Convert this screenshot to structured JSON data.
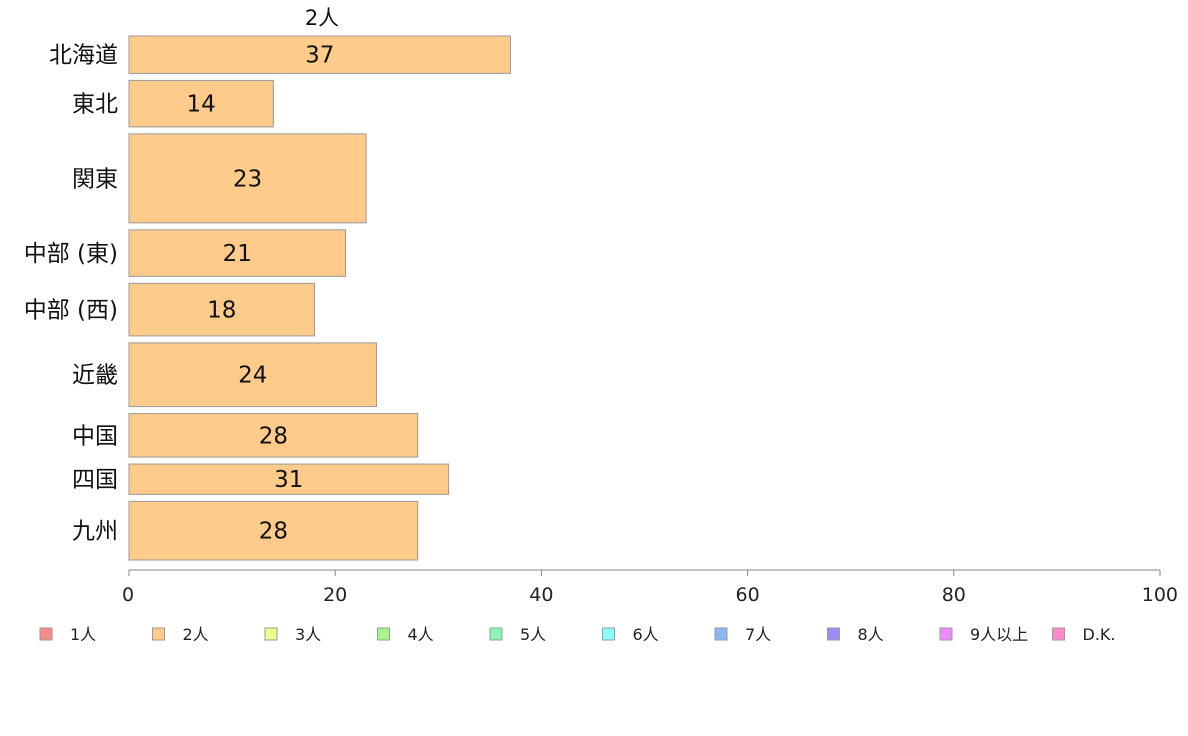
{
  "chart_data": {
    "type": "bar",
    "orientation": "horizontal",
    "series_title": "2人",
    "categories": [
      "北海道",
      "東北",
      "関東",
      "中部 (東)",
      "中部 (西)",
      "近畿",
      "中国",
      "四国",
      "九州"
    ],
    "values": [
      37,
      14,
      23,
      21,
      18,
      24,
      28,
      31,
      28
    ],
    "bar_weights": [
      37,
      46,
      88,
      46,
      52,
      63,
      43,
      30,
      58
    ],
    "xlim": [
      0,
      100
    ],
    "xticks": [
      0,
      20,
      40,
      60,
      80,
      100
    ],
    "grid": false,
    "bar_color": "#fecb8a",
    "bar_edge_color": "#999999",
    "legend_placement": "bottom",
    "legend": [
      {
        "label": "1人",
        "color": "#f98b8b"
      },
      {
        "label": "2人",
        "color": "#fecb8a"
      },
      {
        "label": "3人",
        "color": "#eefe8a"
      },
      {
        "label": "4人",
        "color": "#a8f58a"
      },
      {
        "label": "5人",
        "color": "#8bf5b8"
      },
      {
        "label": "6人",
        "color": "#8bfefe"
      },
      {
        "label": "7人",
        "color": "#8bb8f5"
      },
      {
        "label": "8人",
        "color": "#9a8bf5"
      },
      {
        "label": "9人以上",
        "color": "#ee8bfe"
      },
      {
        "label": "D.K.",
        "color": "#fe8bcb"
      }
    ]
  }
}
